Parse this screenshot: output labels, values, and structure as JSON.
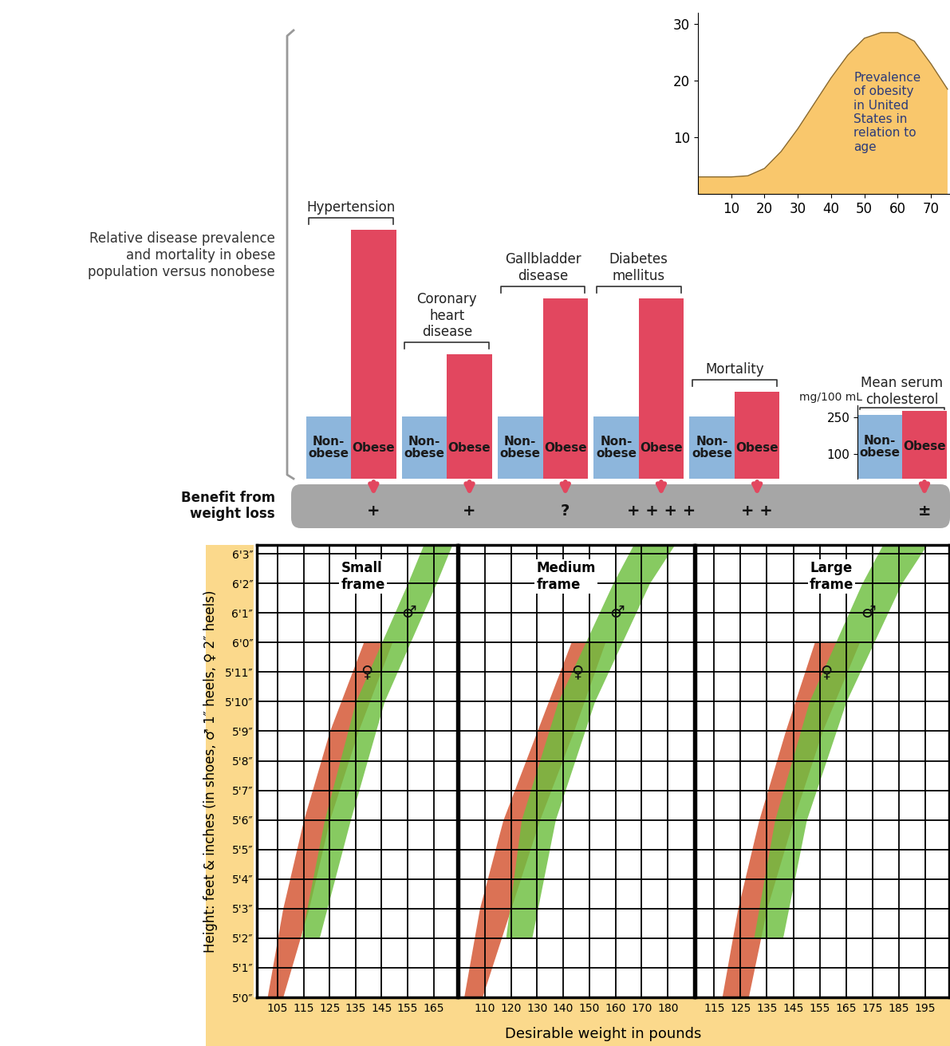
{
  "chart_data": [
    {
      "type": "bar",
      "title": "Relative disease prevalence and mortality in obese population versus nonobese",
      "categories": [
        "Hypertension",
        "Coronary heart disease",
        "Gallbladder disease",
        "Diabetes mellitus",
        "Mortality"
      ],
      "series": [
        {
          "name": "Non-\nobese",
          "color": "#8db6dc",
          "values": [
            1,
            1,
            1,
            1,
            1
          ]
        },
        {
          "name": "Obese",
          "color": "#e2475f",
          "values": [
            4.0,
            2.0,
            2.9,
            2.9,
            1.4
          ]
        }
      ],
      "ylim": [
        0,
        4.2
      ],
      "tick_labels": false,
      "benefit_label": "Benefit from weight loss",
      "benefit": [
        "+",
        "+",
        "?",
        "+ + + +",
        "+ +"
      ]
    },
    {
      "type": "bar",
      "categories": [
        "Mean serum cholesterol"
      ],
      "series": [
        {
          "name": "Non-\nobese",
          "color": "#8db6dc",
          "values": [
            262
          ]
        },
        {
          "name": "Obese",
          "color": "#e2475f",
          "values": [
            278
          ]
        }
      ],
      "ylabel": "mg/100 mL",
      "ylim": [
        0,
        300
      ],
      "yticks": [
        100,
        250
      ],
      "benefit": [
        "±"
      ]
    },
    {
      "type": "area",
      "annotation": "Prevalence of obesity in United States in relation to age",
      "x": [
        0,
        5,
        10,
        15,
        20,
        25,
        30,
        35,
        40,
        45,
        50,
        55,
        60,
        65,
        70,
        75
      ],
      "values": [
        3,
        3,
        3,
        3.2,
        4.5,
        7.5,
        11.5,
        16,
        20.5,
        24.5,
        27.5,
        28.5,
        28.5,
        27,
        23,
        18.5
      ],
      "color": "#f9c76c",
      "xlim": [
        0,
        75.5
      ],
      "xticks": [
        10,
        20,
        30,
        40,
        50,
        60,
        70
      ],
      "ylim": [
        0,
        32
      ],
      "yticks": [
        10,
        20,
        30
      ]
    },
    {
      "type": "range_band",
      "xlabel": "Desirable weight in pounds",
      "ylabel": "Height: feet & inches (in shoes, ♂ 1″ heels, ♀ 2″ heels)",
      "ylim": [
        60,
        75.3
      ],
      "yticks": [
        {
          "value": 60,
          "label": "5'0″"
        },
        {
          "value": 61,
          "label": "5'1″"
        },
        {
          "value": 62,
          "label": "5'2″"
        },
        {
          "value": 63,
          "label": "5'3″"
        },
        {
          "value": 64,
          "label": "5'4″"
        },
        {
          "value": 65,
          "label": "5'5″"
        },
        {
          "value": 66,
          "label": "5'6″"
        },
        {
          "value": 67,
          "label": "5'7″"
        },
        {
          "value": 68,
          "label": "5'8″"
        },
        {
          "value": 69,
          "label": "5'9″"
        },
        {
          "value": 70,
          "label": "5'10″"
        },
        {
          "value": 71,
          "label": "5'11″"
        },
        {
          "value": 72,
          "label": "6'0″"
        },
        {
          "value": 73,
          "label": "6'1″"
        },
        {
          "value": 74,
          "label": "6'2″"
        },
        {
          "value": 75,
          "label": "6'3″"
        }
      ],
      "grid": true,
      "panels": [
        {
          "title": "Small frame",
          "xlim": [
            97,
            174
          ],
          "xticks": [
            105,
            115,
            125,
            135,
            145,
            155,
            165
          ],
          "series": [
            {
              "name": "♀",
              "color": "#d4532f",
              "heights": [
                60,
                63,
                66,
                69,
                72
              ],
              "low": [
                101,
                107,
                115,
                125,
                138
              ],
              "high": [
                107,
                117,
                125,
                136,
                149
              ]
            },
            {
              "name": "♂",
              "color": "#6dbf3e",
              "heights": [
                62,
                66,
                70,
                74,
                75.5
              ],
              "low": [
                114,
                123,
                135,
                155,
                162
              ],
              "high": [
                121,
                133,
                146,
                166,
                173
              ]
            }
          ]
        },
        {
          "title": "Medium frame",
          "xlim": [
            100,
            190
          ],
          "xticks": [
            110,
            120,
            130,
            140,
            150,
            160,
            170,
            180
          ],
          "series": [
            {
              "name": "♀",
              "color": "#d4532f",
              "heights": [
                60,
                63,
                66,
                69,
                72
              ],
              "low": [
                102,
                108,
                117,
                130,
                143
              ],
              "high": [
                109,
                120,
                131,
                144,
                156
              ]
            },
            {
              "name": "♂",
              "color": "#6dbf3e",
              "heights": [
                62,
                66,
                70,
                74,
                75.5
              ],
              "low": [
                118,
                124,
                138,
                159,
                168
              ],
              "high": [
                128,
                137,
                152,
                173,
                184
              ]
            }
          ]
        },
        {
          "title": "Large frame",
          "xlim": [
            108,
            204
          ],
          "xticks": [
            115,
            125,
            135,
            145,
            155,
            165,
            175,
            185,
            195
          ],
          "series": [
            {
              "name": "♀",
              "color": "#d4532f",
              "heights": [
                60,
                63,
                66,
                69,
                72
              ],
              "low": [
                118,
                124,
                132,
                142,
                153
              ],
              "high": [
                128,
                135,
                145,
                156,
                170
              ]
            },
            {
              "name": "♂",
              "color": "#6dbf3e",
              "heights": [
                62,
                66,
                70,
                74,
                75.5
              ],
              "low": [
                130,
                138,
                151,
                171,
                180
              ],
              "high": [
                141,
                150,
                165,
                186,
                197
              ]
            }
          ]
        }
      ]
    }
  ]
}
